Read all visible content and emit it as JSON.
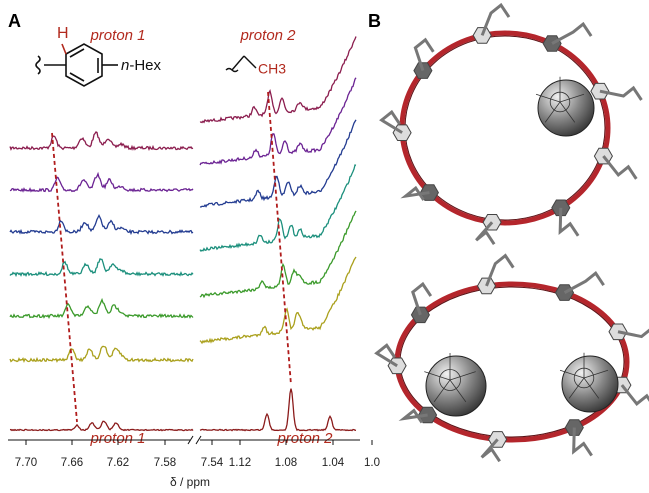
{
  "panel_a": {
    "label": "A",
    "structure_1": {
      "atom": "H",
      "substituent_prefix": "n",
      "substituent": "-Hex"
    },
    "structure_2": {
      "group": "CH3"
    },
    "annotations_top": [
      "proton 1",
      "proton 2"
    ],
    "annotations_bottom": [
      "proton 1",
      "proton 2"
    ],
    "axis": {
      "ticks_left": [
        "7.70",
        "7.66",
        "7.62",
        "7.58",
        "7.54"
      ],
      "ticks_right": [
        "1.12",
        "1.08",
        "1.04",
        "1.0"
      ],
      "label": "δ / ppm"
    }
  },
  "panel_b": {
    "label": "B"
  }
}
